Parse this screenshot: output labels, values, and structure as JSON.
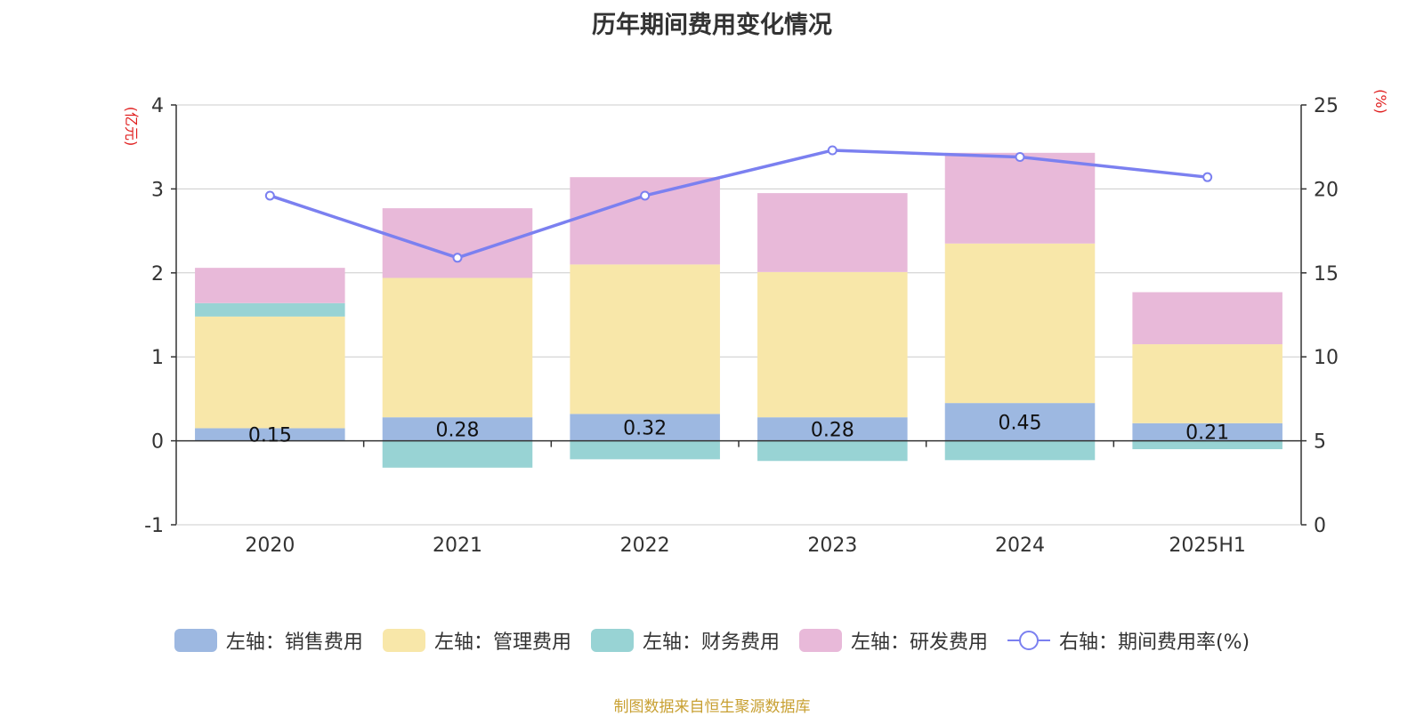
{
  "chart_data": {
    "type": "bar",
    "title": "历年期间费用变化情况",
    "categories": [
      "2020",
      "2021",
      "2022",
      "2023",
      "2024",
      "2025H1"
    ],
    "left_axis": {
      "unit": "(亿元)",
      "ylim": [
        -1,
        4
      ],
      "ticks": [
        -1,
        0,
        1,
        2,
        3,
        4
      ]
    },
    "right_axis": {
      "unit": "(%)",
      "ylim": [
        0,
        25
      ],
      "ticks": [
        0,
        5,
        10,
        15,
        20,
        25
      ]
    },
    "series": [
      {
        "name": "左轴：销售费用",
        "type": "bar",
        "axis": "left",
        "color": "#9db8e1",
        "values": [
          0.15,
          0.28,
          0.32,
          0.28,
          0.45,
          0.21
        ],
        "labels": [
          "0.15",
          "0.28",
          "0.32",
          "0.28",
          "0.45",
          "0.21"
        ]
      },
      {
        "name": "左轴：管理费用",
        "type": "bar",
        "axis": "left",
        "color": "#f8e7a9",
        "values": [
          1.33,
          1.66,
          1.78,
          1.73,
          1.9,
          0.94
        ]
      },
      {
        "name": "左轴：财务费用",
        "type": "bar",
        "axis": "left",
        "color": "#98d3d4",
        "values": [
          0.16,
          -0.32,
          -0.22,
          -0.24,
          -0.23,
          -0.1
        ]
      },
      {
        "name": "左轴：研发费用",
        "type": "bar",
        "axis": "left",
        "color": "#e8b9d9",
        "values": [
          0.42,
          0.83,
          1.04,
          0.94,
          1.08,
          0.62
        ]
      },
      {
        "name": "右轴：期间费用率(%)",
        "type": "line",
        "axis": "right",
        "color": "#7b80f0",
        "values": [
          19.6,
          15.9,
          19.6,
          22.3,
          21.9,
          20.7
        ]
      }
    ],
    "grid": true,
    "legend_position": "bottom"
  },
  "footer": {
    "source": "制图数据来自恒生聚源数据库"
  }
}
